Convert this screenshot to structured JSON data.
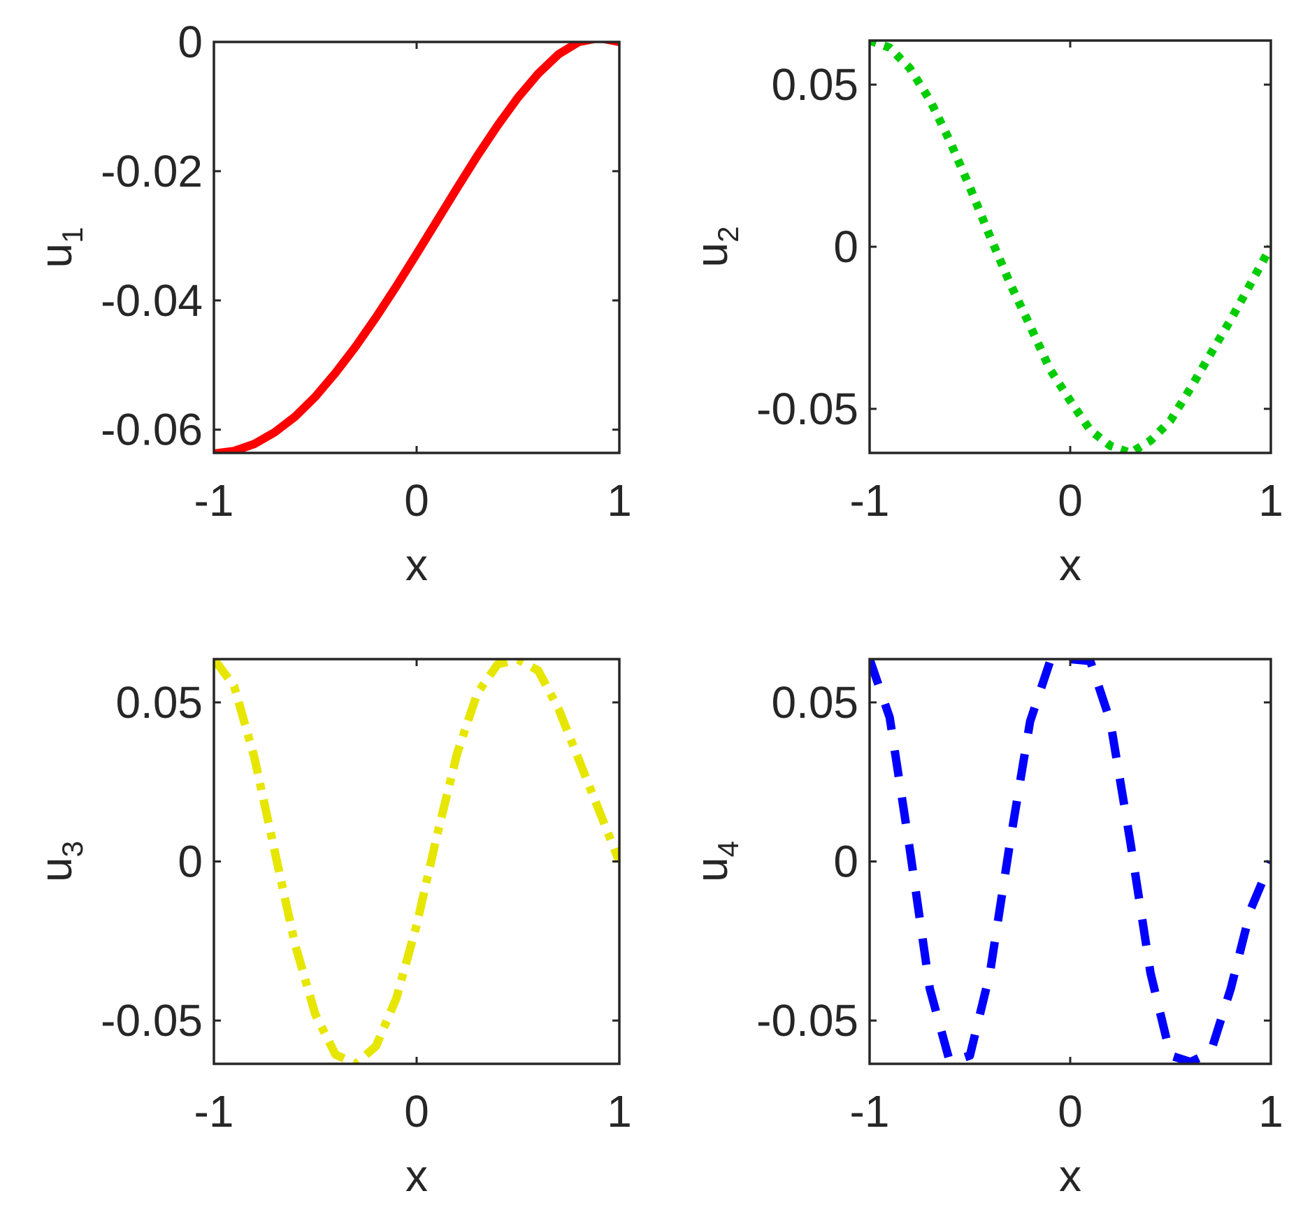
{
  "chart_data": [
    {
      "type": "line",
      "xlabel": "x",
      "ylabel": "u",
      "ylabel_subscript": "1",
      "xlim": [
        -1,
        1
      ],
      "ylim": [
        -0.0636,
        0
      ],
      "xticks": [
        -1,
        0,
        1
      ],
      "xtick_labels": [
        "-1",
        "0",
        "1"
      ],
      "yticks": [
        -0.06,
        -0.04,
        -0.02,
        0
      ],
      "ytick_labels": [
        "-0.06",
        "-0.04",
        "-0.02",
        "0"
      ],
      "grid": false,
      "series": [
        {
          "color": "#ff0000",
          "line_style": "solid",
          "x": [
            -1,
            -0.9,
            -0.8,
            -0.7,
            -0.6,
            -0.5,
            -0.4,
            -0.3,
            -0.2,
            -0.1,
            0,
            0.1,
            0.2,
            0.3,
            0.4,
            0.5,
            0.6,
            0.7,
            0.8,
            0.9,
            1
          ],
          "y": [
            -0.0637,
            -0.0633,
            -0.0622,
            -0.0604,
            -0.058,
            -0.0549,
            -0.0512,
            -0.0471,
            -0.0426,
            -0.0378,
            -0.0328,
            -0.0277,
            -0.0226,
            -0.0176,
            -0.0129,
            -0.0086,
            -0.0049,
            -0.0019,
            0.0,
            0.0006,
            0.0
          ]
        }
      ]
    },
    {
      "type": "line",
      "xlabel": "x",
      "ylabel": "u",
      "ylabel_subscript": "2",
      "xlim": [
        -1,
        1
      ],
      "ylim": [
        -0.0636,
        0.0636
      ],
      "xticks": [
        -1,
        0,
        1
      ],
      "xtick_labels": [
        "-1",
        "0",
        "1"
      ],
      "yticks": [
        -0.05,
        0,
        0.05
      ],
      "ytick_labels": [
        "-0.05",
        "0",
        "0.05"
      ],
      "grid": false,
      "series": [
        {
          "color": "#00cc00",
          "line_style": "dotted",
          "x": [
            -1,
            -0.9,
            -0.8,
            -0.7,
            -0.6,
            -0.5,
            -0.4,
            -0.3,
            -0.2,
            -0.1,
            0,
            0.1,
            0.2,
            0.3,
            0.4,
            0.5,
            0.6,
            0.7,
            0.8,
            0.9,
            1
          ],
          "y": [
            0.0636,
            0.0614,
            0.0551,
            0.0453,
            0.0326,
            0.0183,
            0.0032,
            -0.0113,
            -0.0244,
            -0.0379,
            -0.0475,
            -0.0566,
            -0.0614,
            -0.0636,
            -0.0598,
            -0.0536,
            -0.0436,
            -0.033,
            -0.0225,
            -0.0113,
            0.0
          ]
        }
      ]
    },
    {
      "type": "line",
      "xlabel": "x",
      "ylabel": "u",
      "ylabel_subscript": "3",
      "xlim": [
        -1,
        1
      ],
      "ylim": [
        -0.0636,
        0.0636
      ],
      "xticks": [
        -1,
        0,
        1
      ],
      "xtick_labels": [
        "-1",
        "0",
        "1"
      ],
      "yticks": [
        -0.05,
        0,
        0.05
      ],
      "ytick_labels": [
        "-0.05",
        "0",
        "0.05"
      ],
      "grid": false,
      "series": [
        {
          "color": "#e6e600",
          "line_style": "dash-dot",
          "x": [
            -1,
            -0.9,
            -0.8,
            -0.7,
            -0.6,
            -0.5,
            -0.4,
            -0.3,
            -0.2,
            -0.1,
            0,
            0.1,
            0.2,
            0.3,
            0.4,
            0.5,
            0.6,
            0.7,
            0.8,
            0.9,
            1
          ],
          "y": [
            0.0636,
            0.0551,
            0.0326,
            0.0032,
            -0.026,
            -0.048,
            -0.0607,
            -0.0636,
            -0.058,
            -0.043,
            -0.02,
            0.008,
            0.034,
            0.053,
            0.062,
            0.0635,
            0.06,
            0.048,
            0.032,
            0.016,
            0.0
          ]
        }
      ]
    },
    {
      "type": "line",
      "xlabel": "x",
      "ylabel": "u",
      "ylabel_subscript": "4",
      "xlim": [
        -1,
        1
      ],
      "ylim": [
        -0.0636,
        0.0636
      ],
      "xticks": [
        -1,
        0,
        1
      ],
      "xtick_labels": [
        "-1",
        "0",
        "1"
      ],
      "yticks": [
        -0.05,
        0,
        0.05
      ],
      "ytick_labels": [
        "-0.05",
        "0",
        "0.05"
      ],
      "grid": false,
      "series": [
        {
          "color": "#0000ff",
          "line_style": "dashed",
          "x": [
            -1,
            -0.9,
            -0.8,
            -0.7,
            -0.6,
            -0.5,
            -0.4,
            -0.3,
            -0.2,
            -0.1,
            0,
            0.1,
            0.2,
            0.3,
            0.4,
            0.5,
            0.6,
            0.7,
            0.8,
            0.9,
            1
          ],
          "y": [
            0.0636,
            0.0453,
            0.004,
            -0.04,
            -0.063,
            -0.061,
            -0.035,
            0.006,
            0.044,
            0.063,
            0.0636,
            0.063,
            0.044,
            0.006,
            -0.035,
            -0.061,
            -0.063,
            -0.06,
            -0.04,
            -0.015,
            0.0
          ]
        }
      ]
    }
  ]
}
